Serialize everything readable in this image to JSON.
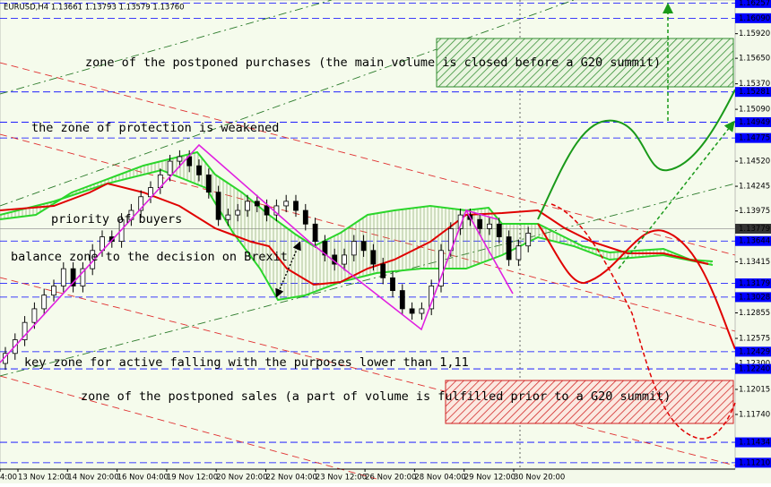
{
  "chart_data": {
    "type": "candlestick",
    "title": "EURUSD,H4  1.13661 1.13793 1.13579 1.13760",
    "open": [
      1.123,
      1.1241,
      1.1256,
      1.1275,
      1.129,
      1.1305,
      1.1315,
      1.1334,
      1.1315,
      1.1334,
      1.1354,
      1.1369,
      1.1364,
      1.1388,
      1.1398,
      1.1413,
      1.1423,
      1.1437,
      1.1452,
      1.1457,
      1.1447,
      1.1437,
      1.1418,
      1.1388,
      1.1393,
      1.1398,
      1.1408,
      1.1403,
      1.1393,
      1.1403,
      1.1408,
      1.1398,
      1.1383,
      1.1364,
      1.1349,
      1.1339,
      1.1349,
      1.1364,
      1.1354,
      1.1339,
      1.1324,
      1.131,
      1.129,
      1.1285,
      1.129,
      1.1315,
      1.1354,
      1.1378,
      1.1393,
      1.1388,
      1.1378,
      1.1383,
      1.1369,
      1.1344,
      1.1359
    ],
    "high": [
      1.1248,
      1.1263,
      1.1282,
      1.1297,
      1.1312,
      1.1322,
      1.1341,
      1.1341,
      1.1341,
      1.1361,
      1.1376,
      1.1376,
      1.1395,
      1.1405,
      1.142,
      1.143,
      1.1444,
      1.1459,
      1.1464,
      1.1464,
      1.1454,
      1.1444,
      1.1425,
      1.14,
      1.1405,
      1.1415,
      1.1415,
      1.141,
      1.141,
      1.1415,
      1.1415,
      1.1405,
      1.139,
      1.1371,
      1.1356,
      1.1356,
      1.1371,
      1.1371,
      1.1361,
      1.1346,
      1.1331,
      1.1317,
      1.1297,
      1.1297,
      1.1322,
      1.1361,
      1.1385,
      1.14,
      1.14,
      1.1395,
      1.139,
      1.139,
      1.1376,
      1.1366,
      1.138
    ],
    "low": [
      1.1223,
      1.1234,
      1.1249,
      1.1268,
      1.1283,
      1.1298,
      1.1308,
      1.1308,
      1.1308,
      1.1327,
      1.1347,
      1.1357,
      1.1357,
      1.1381,
      1.1391,
      1.1406,
      1.1416,
      1.143,
      1.1445,
      1.144,
      1.143,
      1.1411,
      1.1381,
      1.1381,
      1.1386,
      1.1391,
      1.1396,
      1.1386,
      1.1386,
      1.1396,
      1.1391,
      1.1376,
      1.1357,
      1.1342,
      1.1332,
      1.1332,
      1.1342,
      1.1347,
      1.1332,
      1.1317,
      1.1303,
      1.1283,
      1.1278,
      1.1278,
      1.1283,
      1.1308,
      1.1347,
      1.1371,
      1.1381,
      1.1371,
      1.1371,
      1.1362,
      1.1337,
      1.1337,
      1.1352
    ],
    "close": [
      1.1241,
      1.1256,
      1.1275,
      1.129,
      1.1305,
      1.1315,
      1.1334,
      1.1315,
      1.1334,
      1.1354,
      1.1369,
      1.1364,
      1.1388,
      1.1398,
      1.1413,
      1.1423,
      1.1437,
      1.1452,
      1.1457,
      1.1447,
      1.1437,
      1.1418,
      1.1388,
      1.1393,
      1.1398,
      1.1408,
      1.1403,
      1.1393,
      1.1403,
      1.1408,
      1.1398,
      1.1383,
      1.1364,
      1.1349,
      1.1339,
      1.1349,
      1.1364,
      1.1354,
      1.1339,
      1.1324,
      1.131,
      1.129,
      1.1285,
      1.129,
      1.1315,
      1.1354,
      1.1378,
      1.1393,
      1.1388,
      1.1378,
      1.1383,
      1.1369,
      1.1344,
      1.1359,
      1.1373
    ],
    "ylim": [
      1.1114,
      1.1629
    ],
    "yticks": [
      {
        "value": 1.1592,
        "label": "1.15920"
      },
      {
        "value": 1.1565,
        "label": "1.15650"
      },
      {
        "value": 1.1537,
        "label": "1.15370"
      },
      {
        "value": 1.1509,
        "label": "1.15090"
      },
      {
        "value": 1.1452,
        "label": "1.14520"
      },
      {
        "value": 1.14245,
        "label": "1.14245"
      },
      {
        "value": 1.13975,
        "label": "1.13975"
      },
      {
        "value": 1.13415,
        "label": "1.13415"
      },
      {
        "value": 1.12855,
        "label": "1.12855"
      },
      {
        "value": 1.12575,
        "label": "1.12575"
      },
      {
        "value": 1.123,
        "label": "1.12300"
      },
      {
        "value": 1.12015,
        "label": "1.12015"
      },
      {
        "value": 1.1174,
        "label": "1.11740"
      }
    ],
    "levels": [
      {
        "value": 1.16257,
        "label": "1.16257"
      },
      {
        "value": 1.1609,
        "label": "1.16090"
      },
      {
        "value": 1.15281,
        "label": "1.15281"
      },
      {
        "value": 1.14949,
        "label": "1.14949"
      },
      {
        "value": 1.14775,
        "label": "1.14775"
      },
      {
        "value": 1.13644,
        "label": "1.13644"
      },
      {
        "value": 1.13179,
        "label": "1.13179"
      },
      {
        "value": 1.13028,
        "label": "1.13028"
      },
      {
        "value": 1.12429,
        "label": "1.12429"
      },
      {
        "value": 1.1224,
        "label": "1.12240"
      },
      {
        "value": 1.11434,
        "label": "1.11434"
      },
      {
        "value": 1.1121,
        "label": "1.11210"
      }
    ],
    "current_price": {
      "value": 1.13779,
      "label": "1.13779"
    },
    "level_color": "#0000ff",
    "x_labels": [
      "4:00",
      "13 Nov 12:00",
      "14 Nov 20:00",
      "16 Nov 04:00",
      "19 Nov 12:00",
      "20 Nov 20:00",
      "22 Nov 04:00",
      "23 Nov 12:00",
      "26 Nov 20:00",
      "28 Nov 04:00",
      "29 Nov 12:00",
      "30 Nov 20:00"
    ],
    "annotations": [
      "zone of the postponed purchases (the main volume is closed before a G20 summit)",
      "the zone of protection is weakened",
      "priority of buyers",
      "balance zone to the decision on Brexit",
      "key zone for active falling with the purposes lower than 1,11",
      "zone of the postponed sales (a part of volume is fulfilled prior to a G20 summit)"
    ]
  }
}
